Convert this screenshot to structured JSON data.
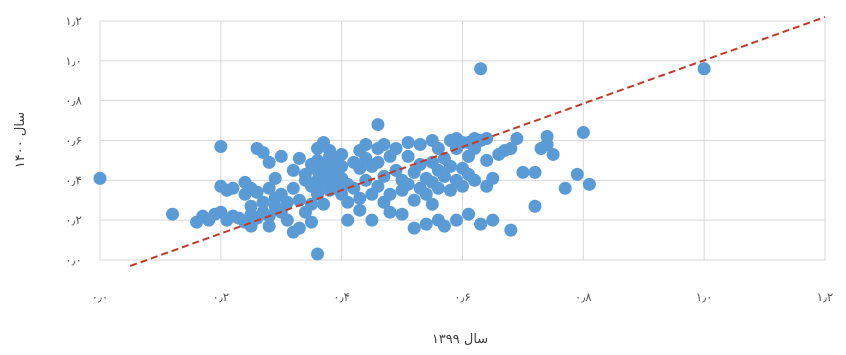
{
  "chart_data": {
    "type": "scatter",
    "xlabel": "سال ۱۳۹۹",
    "ylabel": "سال ۱۴۰۰",
    "xlim": [
      0,
      1.2
    ],
    "ylim": [
      0,
      1.2
    ],
    "x_ticks": [
      {
        "value": 0.0,
        "label": "۰٫۰"
      },
      {
        "value": 0.2,
        "label": "۰٫۲"
      },
      {
        "value": 0.4,
        "label": "۰٫۴"
      },
      {
        "value": 0.6,
        "label": "۰٫۶"
      },
      {
        "value": 0.8,
        "label": "۰٫۸"
      },
      {
        "value": 1.0,
        "label": "۱٫۰"
      },
      {
        "value": 1.2,
        "label": "۱٫۲"
      }
    ],
    "y_ticks": [
      {
        "value": 0.0,
        "label": "۰٫۰"
      },
      {
        "value": 0.2,
        "label": "۰٫۲"
      },
      {
        "value": 0.4,
        "label": "۰٫۴"
      },
      {
        "value": 0.6,
        "label": "۰٫۶"
      },
      {
        "value": 0.8,
        "label": "۰٫۸"
      },
      {
        "value": 1.0,
        "label": "۱٫۰"
      },
      {
        "value": 1.2,
        "label": "۱٫۲"
      }
    ],
    "grid": true,
    "legend": "none",
    "colors": {
      "points": "#5B9BD5",
      "reference_line": "#C0392B",
      "grid": "#D9D9D9"
    },
    "reference_line": {
      "style": "dashed",
      "from": [
        0.05,
        -0.03
      ],
      "to": [
        1.2,
        1.22
      ]
    },
    "points": [
      [
        0.0,
        0.41
      ],
      [
        0.12,
        0.23
      ],
      [
        0.16,
        0.19
      ],
      [
        0.17,
        0.22
      ],
      [
        0.18,
        0.2
      ],
      [
        0.19,
        0.23
      ],
      [
        0.2,
        0.37
      ],
      [
        0.2,
        0.57
      ],
      [
        0.2,
        0.24
      ],
      [
        0.21,
        0.35
      ],
      [
        0.21,
        0.2
      ],
      [
        0.22,
        0.36
      ],
      [
        0.22,
        0.22
      ],
      [
        0.23,
        0.21
      ],
      [
        0.24,
        0.33
      ],
      [
        0.24,
        0.19
      ],
      [
        0.24,
        0.39
      ],
      [
        0.25,
        0.23
      ],
      [
        0.25,
        0.17
      ],
      [
        0.25,
        0.36
      ],
      [
        0.25,
        0.27
      ],
      [
        0.26,
        0.56
      ],
      [
        0.26,
        0.21
      ],
      [
        0.26,
        0.34
      ],
      [
        0.27,
        0.29
      ],
      [
        0.27,
        0.54
      ],
      [
        0.27,
        0.24
      ],
      [
        0.28,
        0.49
      ],
      [
        0.28,
        0.36
      ],
      [
        0.28,
        0.22
      ],
      [
        0.28,
        0.17
      ],
      [
        0.29,
        0.31
      ],
      [
        0.29,
        0.27
      ],
      [
        0.29,
        0.41
      ],
      [
        0.3,
        0.24
      ],
      [
        0.3,
        0.52
      ],
      [
        0.3,
        0.33
      ],
      [
        0.31,
        0.2
      ],
      [
        0.31,
        0.29
      ],
      [
        0.32,
        0.45
      ],
      [
        0.32,
        0.36
      ],
      [
        0.32,
        0.14
      ],
      [
        0.33,
        0.51
      ],
      [
        0.33,
        0.3
      ],
      [
        0.33,
        0.16
      ],
      [
        0.34,
        0.4
      ],
      [
        0.34,
        0.24
      ],
      [
        0.34,
        0.43
      ],
      [
        0.35,
        0.48
      ],
      [
        0.35,
        0.37
      ],
      [
        0.35,
        0.28
      ],
      [
        0.35,
        0.19
      ],
      [
        0.36,
        0.45
      ],
      [
        0.36,
        0.56
      ],
      [
        0.36,
        0.4
      ],
      [
        0.36,
        0.5
      ],
      [
        0.36,
        0.33
      ],
      [
        0.36,
        0.03
      ],
      [
        0.37,
        0.43
      ],
      [
        0.37,
        0.59
      ],
      [
        0.37,
        0.38
      ],
      [
        0.37,
        0.28
      ],
      [
        0.37,
        0.47
      ],
      [
        0.38,
        0.52
      ],
      [
        0.38,
        0.42
      ],
      [
        0.38,
        0.35
      ],
      [
        0.38,
        0.46
      ],
      [
        0.38,
        0.41
      ],
      [
        0.38,
        0.55
      ],
      [
        0.39,
        0.43
      ],
      [
        0.39,
        0.36
      ],
      [
        0.39,
        0.49
      ],
      [
        0.39,
        0.39
      ],
      [
        0.39,
        0.45
      ],
      [
        0.4,
        0.41
      ],
      [
        0.4,
        0.53
      ],
      [
        0.4,
        0.33
      ],
      [
        0.4,
        0.47
      ],
      [
        0.41,
        0.38
      ],
      [
        0.41,
        0.29
      ],
      [
        0.41,
        0.2
      ],
      [
        0.42,
        0.36
      ],
      [
        0.42,
        0.49
      ],
      [
        0.43,
        0.55
      ],
      [
        0.43,
        0.31
      ],
      [
        0.43,
        0.46
      ],
      [
        0.43,
        0.25
      ],
      [
        0.44,
        0.58
      ],
      [
        0.44,
        0.51
      ],
      [
        0.44,
        0.4
      ],
      [
        0.45,
        0.47
      ],
      [
        0.45,
        0.33
      ],
      [
        0.45,
        0.2
      ],
      [
        0.46,
        0.56
      ],
      [
        0.46,
        0.68
      ],
      [
        0.46,
        0.37
      ],
      [
        0.46,
        0.49
      ],
      [
        0.47,
        0.58
      ],
      [
        0.47,
        0.42
      ],
      [
        0.47,
        0.29
      ],
      [
        0.48,
        0.52
      ],
      [
        0.48,
        0.33
      ],
      [
        0.48,
        0.24
      ],
      [
        0.49,
        0.45
      ],
      [
        0.49,
        0.56
      ],
      [
        0.5,
        0.4
      ],
      [
        0.5,
        0.35
      ],
      [
        0.5,
        0.23
      ],
      [
        0.51,
        0.52
      ],
      [
        0.51,
        0.59
      ],
      [
        0.51,
        0.38
      ],
      [
        0.52,
        0.44
      ],
      [
        0.52,
        0.3
      ],
      [
        0.52,
        0.16
      ],
      [
        0.53,
        0.58
      ],
      [
        0.53,
        0.36
      ],
      [
        0.53,
        0.48
      ],
      [
        0.54,
        0.41
      ],
      [
        0.54,
        0.33
      ],
      [
        0.54,
        0.18
      ],
      [
        0.55,
        0.6
      ],
      [
        0.55,
        0.49
      ],
      [
        0.55,
        0.39
      ],
      [
        0.55,
        0.28
      ],
      [
        0.56,
        0.56
      ],
      [
        0.56,
        0.45
      ],
      [
        0.56,
        0.36
      ],
      [
        0.56,
        0.2
      ],
      [
        0.57,
        0.51
      ],
      [
        0.57,
        0.42
      ],
      [
        0.57,
        0.17
      ],
      [
        0.58,
        0.6
      ],
      [
        0.58,
        0.47
      ],
      [
        0.58,
        0.35
      ],
      [
        0.59,
        0.56
      ],
      [
        0.59,
        0.4
      ],
      [
        0.59,
        0.61
      ],
      [
        0.59,
        0.2
      ],
      [
        0.6,
        0.59
      ],
      [
        0.6,
        0.46
      ],
      [
        0.6,
        0.37
      ],
      [
        0.61,
        0.59
      ],
      [
        0.61,
        0.52
      ],
      [
        0.61,
        0.43
      ],
      [
        0.61,
        0.23
      ],
      [
        0.62,
        0.56
      ],
      [
        0.62,
        0.4
      ],
      [
        0.62,
        0.61
      ],
      [
        0.63,
        0.6
      ],
      [
        0.63,
        0.18
      ],
      [
        0.64,
        0.61
      ],
      [
        0.64,
        0.5
      ],
      [
        0.64,
        0.37
      ],
      [
        0.65,
        0.41
      ],
      [
        0.65,
        0.2
      ],
      [
        0.66,
        0.53
      ],
      [
        0.67,
        0.55
      ],
      [
        0.68,
        0.56
      ],
      [
        0.68,
        0.15
      ],
      [
        0.69,
        0.61
      ],
      [
        0.7,
        0.44
      ],
      [
        0.72,
        0.44
      ],
      [
        0.72,
        0.27
      ],
      [
        0.73,
        0.56
      ],
      [
        0.74,
        0.62
      ],
      [
        0.74,
        0.58
      ],
      [
        0.75,
        0.53
      ],
      [
        0.77,
        0.36
      ],
      [
        0.79,
        0.43
      ],
      [
        0.8,
        0.64
      ],
      [
        0.81,
        0.38
      ],
      [
        0.63,
        0.96
      ],
      [
        1.0,
        0.96
      ]
    ]
  }
}
